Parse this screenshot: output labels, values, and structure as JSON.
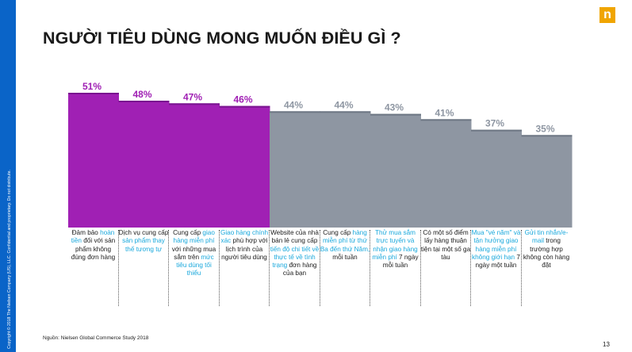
{
  "title": "NGƯỜI TIÊU DÙNG MONG MUỐN ĐIỀU GÌ ?",
  "logo": "n",
  "copyright": "Copyright © 2018 The Nielsen Company (US), LLC. Confidential and proprietary. Do not distribute.",
  "source": "Nguồn: Nielsen Global Commerce Study 2018",
  "page_number": "13",
  "colors": {
    "purple": "#a020b4",
    "gray": "#8e96a2",
    "highlight": "#19a8dc",
    "sidebar": "#0a64c8",
    "logo": "#f0a500"
  },
  "chart_data": {
    "type": "bar",
    "categories": [
      [
        {
          "t": "Đảm bảo "
        },
        {
          "t": "hoàn tiền",
          "h": true
        },
        {
          "t": " đối với sản phẩm không đúng đơn hàng"
        }
      ],
      [
        {
          "t": "Dịch vụ cung cấp "
        },
        {
          "t": "sản phẩm thay thế tương tự",
          "h": true
        }
      ],
      [
        {
          "t": "Cung cấp "
        },
        {
          "t": "giao hàng miễn phí",
          "h": true
        },
        {
          "t": " với những mua sắm trên "
        },
        {
          "t": "mức tiêu dùng tối thiểu",
          "h": true
        }
      ],
      [
        {
          "t": "Giao hàng chính xác",
          "h": true
        },
        {
          "t": " phù hợp với lịch trình của người tiêu dùng"
        }
      ],
      [
        {
          "t": "Website của nhà bán lẻ cung cấp "
        },
        {
          "t": "tiến độ chi tiết về thực tế về tình trạng",
          "h": true
        },
        {
          "t": " đơn hàng của bạn"
        }
      ],
      [
        {
          "t": "Cung cấp "
        },
        {
          "t": "hàng miễn phí từ thứ Ba đến thứ Năm,",
          "h": true
        },
        {
          "t": " mỗi tuần"
        }
      ],
      [
        {
          "t": "Thử mua sắm trực tuyến và nhận giao hàng miễn phí",
          "h": true
        },
        {
          "t": " 7 ngày mỗi tuần"
        }
      ],
      [
        {
          "t": "Có một số điểm lấy hàng thuận tiện tại một số ga tàu"
        }
      ],
      [
        {
          "t": "Mua \"vé năm\" và tận hưởng giao hàng miễn phí không giới hạn",
          "h": true
        },
        {
          "t": " 7 ngày một tuần"
        }
      ],
      [
        {
          "t": "Gửi tin nhắn/e-mail",
          "h": true
        },
        {
          "t": " trong trường hợp không còn hàng đặt"
        }
      ]
    ],
    "values": [
      51,
      48,
      47,
      46,
      44,
      44,
      43,
      41,
      37,
      35
    ],
    "value_labels": [
      "51%",
      "48%",
      "47%",
      "46%",
      "44%",
      "44%",
      "43%",
      "41%",
      "37%",
      "35%"
    ],
    "bar_colors": [
      "purple",
      "purple",
      "purple",
      "purple",
      "gray",
      "gray",
      "gray",
      "gray",
      "gray",
      "gray"
    ],
    "ylim": [
      0,
      51
    ],
    "grid": false,
    "legend": "none"
  }
}
